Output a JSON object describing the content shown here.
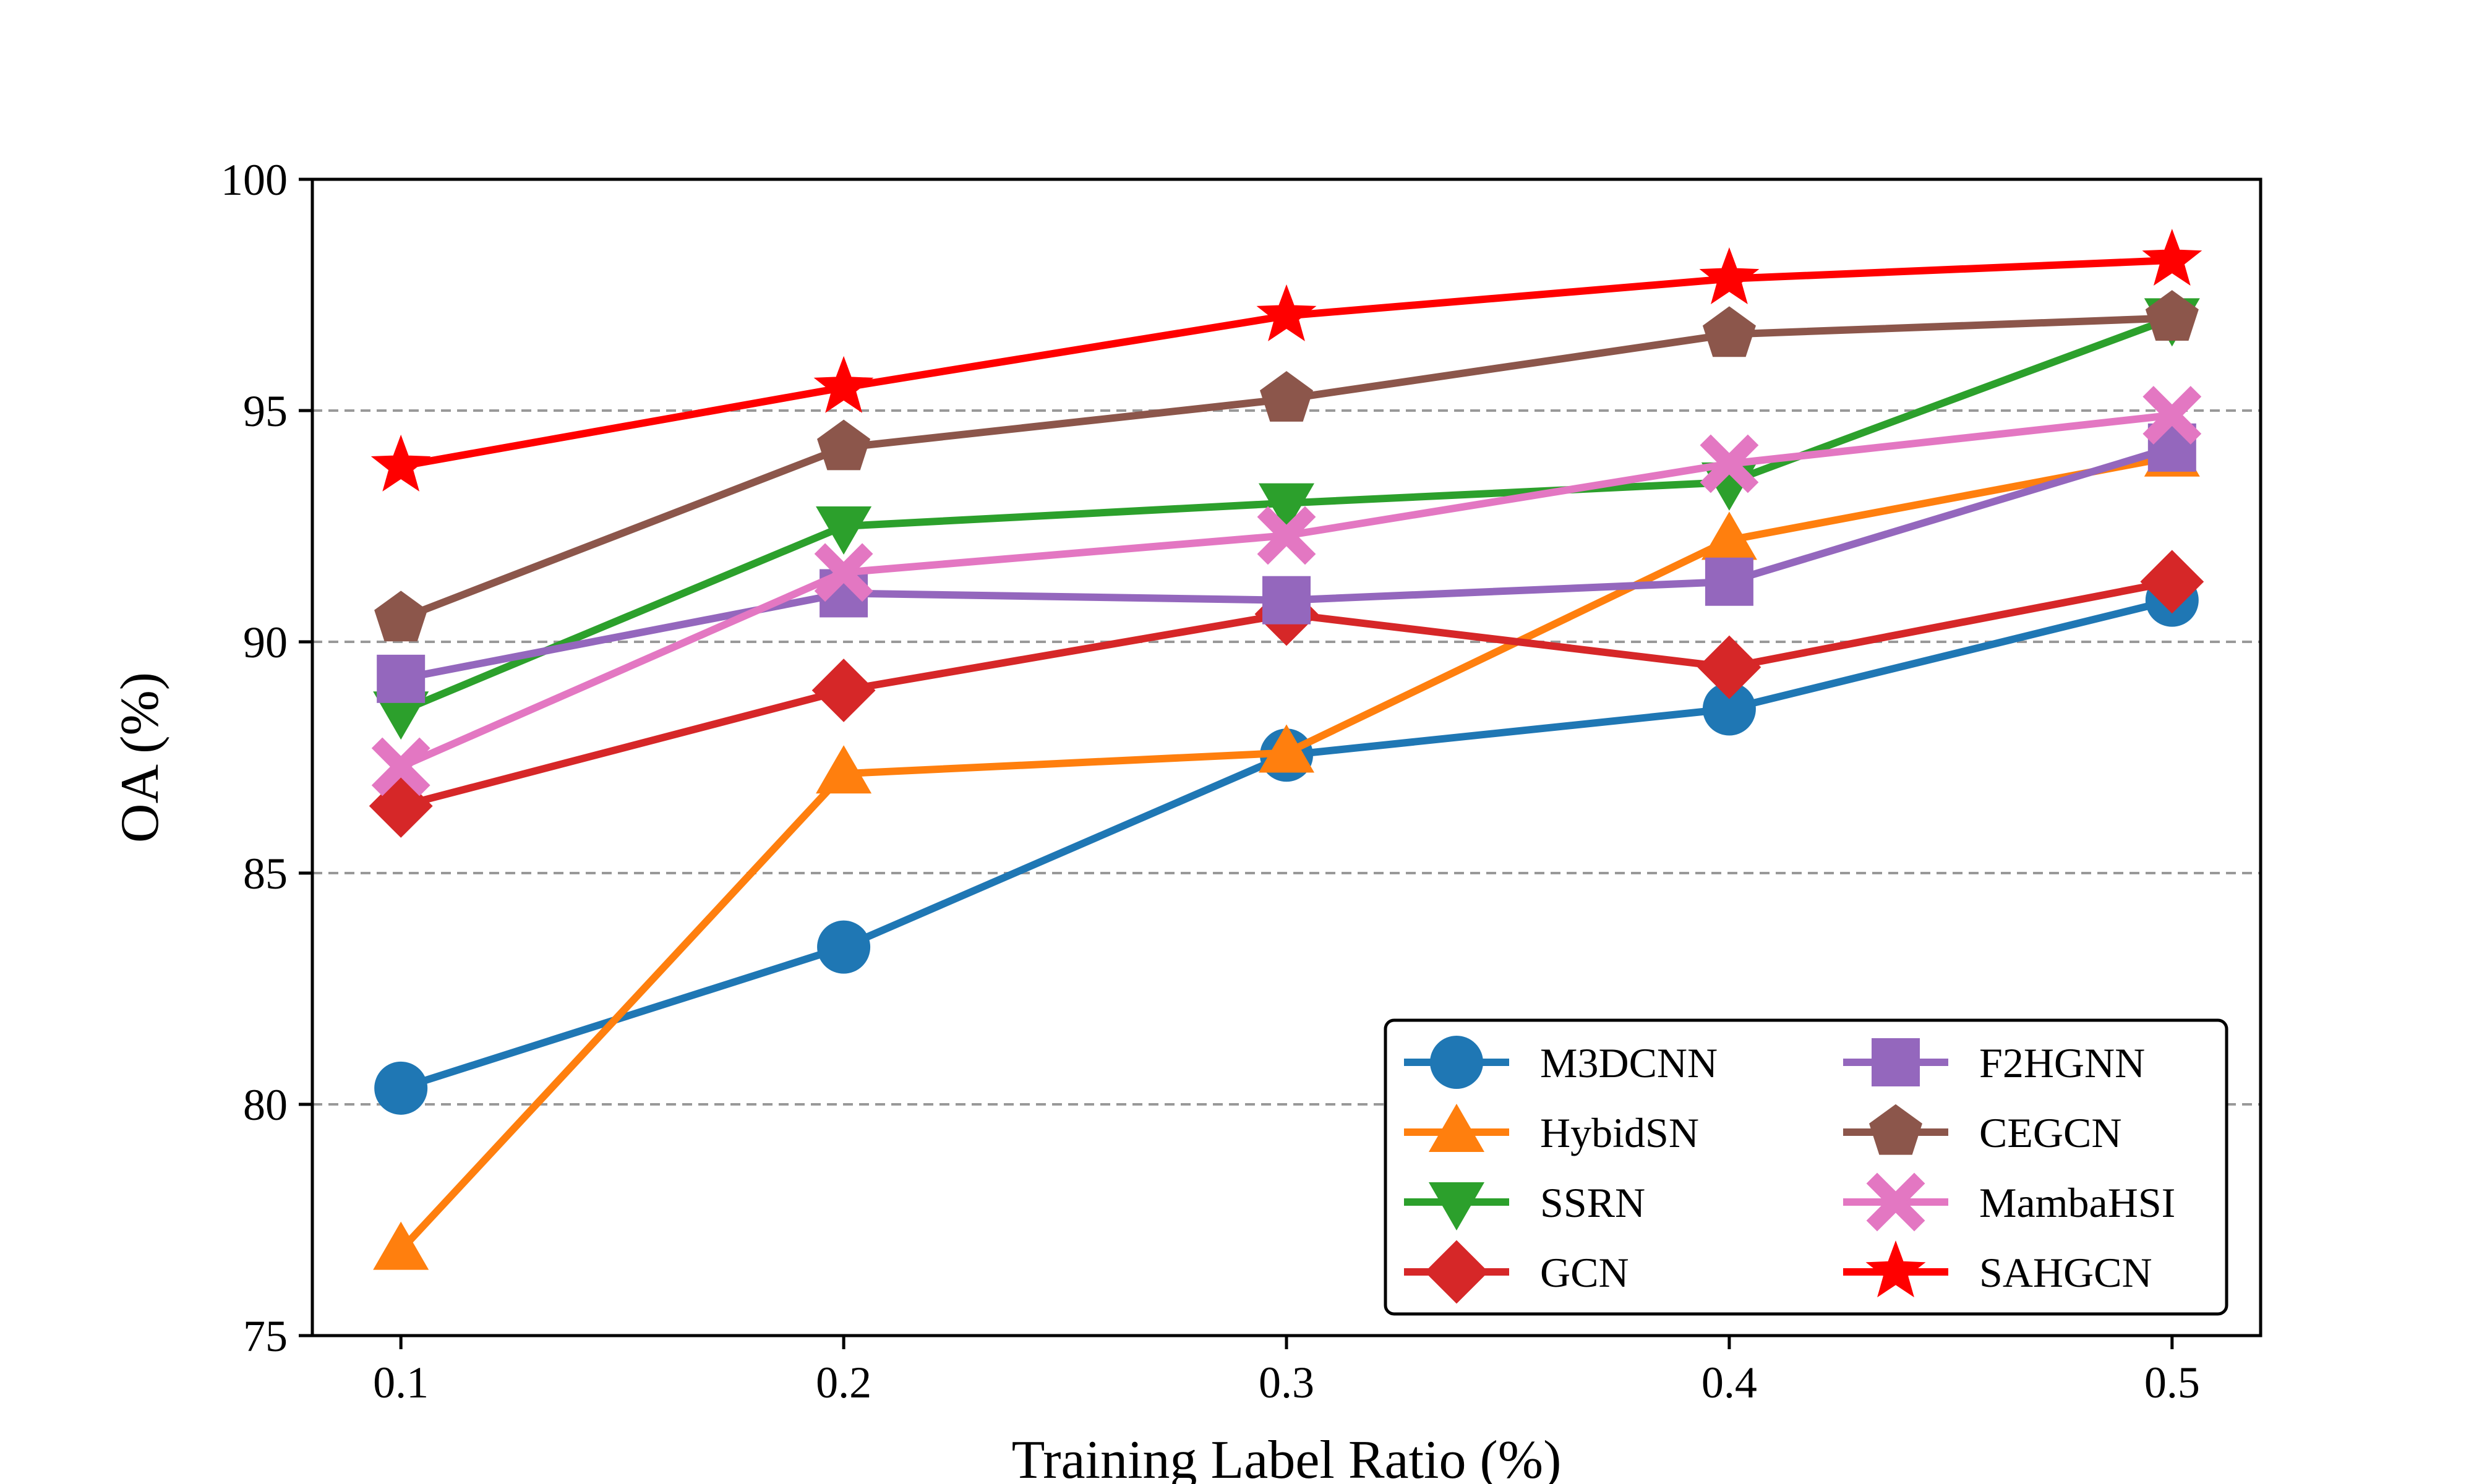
{
  "chart_data": {
    "type": "line",
    "title": "",
    "xlabel": "Training Label Ratio (%)",
    "ylabel": "OA (%)",
    "x": [
      0.1,
      0.2,
      0.3,
      0.4,
      0.5
    ],
    "x_tick_labels": [
      "0.1",
      "0.2",
      "0.3",
      "0.4",
      "0.5"
    ],
    "ylim": [
      75,
      100
    ],
    "y_ticks": [
      75,
      80,
      85,
      90,
      95,
      100
    ],
    "y_tick_labels": [
      "75",
      "80",
      "85",
      "90",
      "95",
      "100"
    ],
    "grid": "horizontal dashed",
    "legend_position": "bottom-right",
    "legend_columns": 2,
    "series": [
      {
        "name": "M3DCNN",
        "color": "#1f77b4",
        "marker": "circle",
        "values": [
          80.35,
          83.4,
          87.55,
          88.55,
          90.9
        ]
      },
      {
        "name": "HybidSN",
        "color": "#ff7f0e",
        "marker": "triangle-up",
        "values": [
          76.85,
          87.15,
          87.6,
          92.2,
          94.0
        ]
      },
      {
        "name": "SSRN",
        "color": "#2ca02c",
        "marker": "triangle-down",
        "values": [
          88.5,
          92.5,
          93.0,
          93.45,
          97.0
        ]
      },
      {
        "name": "GCN",
        "color": "#d62728",
        "marker": "diamond",
        "values": [
          86.45,
          88.95,
          90.6,
          89.45,
          91.3
        ]
      },
      {
        "name": "F2HGNN",
        "color": "#9467bd",
        "marker": "square",
        "values": [
          89.2,
          91.05,
          90.9,
          91.3,
          94.2
        ]
      },
      {
        "name": "CEGCN",
        "color": "#8c564b",
        "marker": "pentagon",
        "values": [
          90.5,
          94.2,
          95.25,
          96.65,
          97.0
        ]
      },
      {
        "name": "MambaHSI",
        "color": "#e377c2",
        "marker": "x-cross",
        "values": [
          87.3,
          91.5,
          92.3,
          93.85,
          94.9
        ]
      },
      {
        "name": "SAHGCN",
        "color": "#ff0000",
        "marker": "star",
        "values": [
          93.8,
          95.5,
          97.05,
          97.85,
          98.25
        ]
      }
    ]
  }
}
